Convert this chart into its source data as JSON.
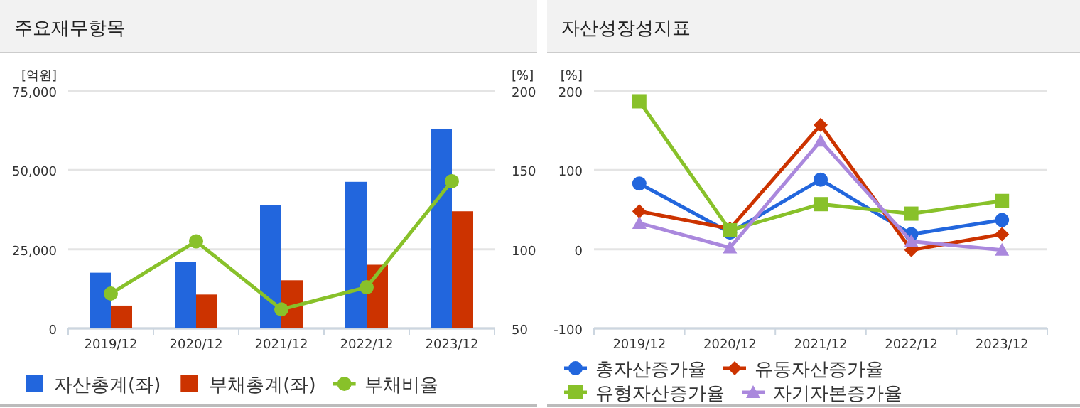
{
  "chart_data": [
    {
      "type": "bar",
      "title": "주요재무항목",
      "ylabel": "[억원]",
      "y2label": "[%]",
      "categories": [
        "2019/12",
        "2020/12",
        "2021/12",
        "2022/12",
        "2023/12"
      ],
      "series": [
        {
          "name": "자산총계(좌)",
          "color": "#2266dd",
          "values": [
            17600,
            21000,
            38900,
            46300,
            63100
          ]
        },
        {
          "name": "부채총계(좌)",
          "color": "#cc3300",
          "values": [
            7200,
            10700,
            15200,
            20100,
            37000
          ]
        },
        {
          "name": "부채비율",
          "type": "line",
          "axis": "y2",
          "marker": "circle",
          "color": "#88c12a",
          "values": [
            72,
            105,
            62,
            76,
            143
          ]
        }
      ],
      "ylim": [
        0,
        75000
      ],
      "yticks": [
        {
          "value": 0,
          "label": "0"
        },
        {
          "value": 25000,
          "label": "25,000"
        },
        {
          "value": 50000,
          "label": "50,000"
        },
        {
          "value": 75000,
          "label": "75,000"
        }
      ],
      "y2lim": [
        50,
        200
      ],
      "y2ticks": [
        50,
        100,
        150,
        200
      ],
      "grid": "y",
      "legend": "bottom"
    },
    {
      "type": "line",
      "title": "자산성장성지표",
      "ylabel": "[%]",
      "categories": [
        "2019/12",
        "2020/12",
        "2021/12",
        "2022/12",
        "2023/12"
      ],
      "series": [
        {
          "name": "총자산증가율",
          "marker": "circle",
          "color": "#2266dd",
          "values": [
            83,
            21,
            88,
            19,
            37
          ]
        },
        {
          "name": "유동자산증가율",
          "marker": "diamond",
          "color": "#cc3300",
          "values": [
            48,
            26,
            157,
            -1,
            19
          ]
        },
        {
          "name": "유형자산증가율",
          "marker": "square",
          "color": "#88c12a",
          "values": [
            187,
            24,
            57,
            45,
            61
          ]
        },
        {
          "name": "자기자본증가율",
          "marker": "triangle",
          "color": "#aa88dd",
          "values": [
            33,
            2,
            137,
            10,
            -1
          ]
        }
      ],
      "ylim": [
        -100,
        200
      ],
      "yticks": [
        -100,
        0,
        100,
        200
      ],
      "grid": "y",
      "legend": "bottom"
    }
  ]
}
